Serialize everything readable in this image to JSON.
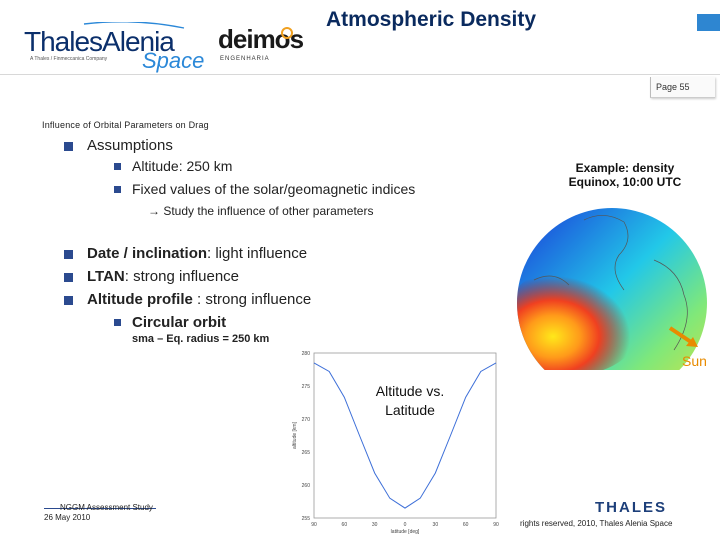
{
  "header": {
    "title": "Atmospheric Density",
    "page_label": "Page 55",
    "logos": {
      "thales_alenia_name": "ThalesAlenia",
      "thales_alenia_tagline": "A Thales / Finmeccanica Company",
      "thales_alenia_space": "Space",
      "deimos_name": "deimos",
      "deimos_sub": "ENGENHARIA",
      "thales_footer": "THALES"
    },
    "accent_color": "#2e86d1"
  },
  "section_title": "Influence of  Orbital Parameters on Drag",
  "bullets": {
    "assumptions": "Assumptions",
    "altitude": "Altitude: 250 km",
    "fixed_values": "Fixed values of the solar/geomagnetic indices",
    "arrow_note": "→ Study the influence of other parameters",
    "date_inclination_bold": "Date / inclination",
    "date_inclination_rest": ": light influence",
    "ltan_bold": "LTAN",
    "ltan_rest": ": strong influence",
    "altitude_profile_bold": "Altitude profile",
    "altitude_profile_rest": " : strong influence",
    "circular_orbit": "Circular orbit",
    "sma_note": "sma – Eq. radius = 250 km"
  },
  "example": {
    "line1": "Example: density",
    "line2": "Equinox, 10:00 UTC",
    "sun_label": "Sun",
    "sun_color": "#e88b00"
  },
  "plot": {
    "caption_line1": "Altitude vs.",
    "caption_line2": "Latitude",
    "ylabel": "altitude [km]",
    "xlabel": "latitude [deg]",
    "yticks": [
      "280",
      "275",
      "270",
      "265",
      "260",
      "255"
    ],
    "xticks": [
      "90",
      "60",
      "30",
      "0",
      "30",
      "60",
      "90"
    ]
  },
  "chart_data": {
    "type": "line",
    "title": "",
    "xlabel": "latitude [deg]",
    "ylabel": "altitude [km]",
    "xlim": [
      -90,
      90
    ],
    "ylim": [
      255,
      280
    ],
    "x": [
      -90,
      -75,
      -60,
      -45,
      -30,
      -15,
      0,
      15,
      30,
      45,
      60,
      75,
      90
    ],
    "series": [
      {
        "values": [
          278.5,
          277.2,
          273.3,
          267.5,
          261.8,
          258.0,
          256.5,
          258.0,
          261.8,
          267.5,
          273.3,
          277.2,
          278.5
        ]
      }
    ]
  },
  "footer": {
    "study": "NGGM Assessment Study",
    "date": "26 May 2010",
    "rights": "rights reserved, 2010, Thales Alenia Space"
  }
}
